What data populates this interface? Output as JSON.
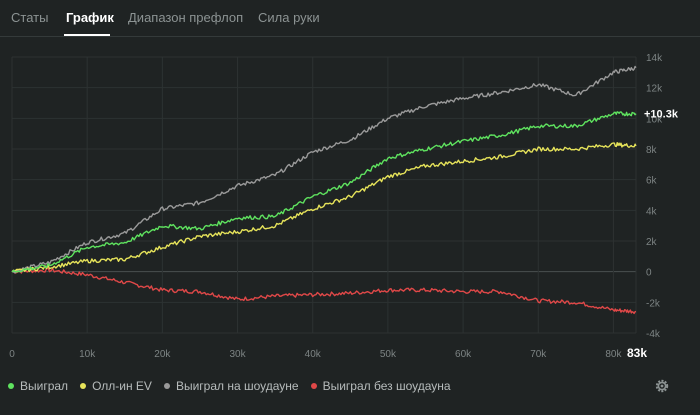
{
  "tabs": [
    {
      "label": "Статы",
      "active": false
    },
    {
      "label": "График",
      "active": true
    },
    {
      "label": "Диапазон префлоп",
      "active": false
    },
    {
      "label": "Сила руки",
      "active": false
    }
  ],
  "colors": {
    "background": "#1f2323",
    "won": "#5fe35f",
    "allin_ev": "#e6e35a",
    "showdown": "#9a9a9a",
    "non_showdown": "#e04848"
  },
  "end_value_label": "+10.3k",
  "end_x_label": "83k",
  "legend": [
    {
      "label": "Выиграл",
      "color": "#5fe35f"
    },
    {
      "label": "Олл-ин EV",
      "color": "#e6e35a"
    },
    {
      "label": "Выиграл на шоудауне",
      "color": "#9a9a9a"
    },
    {
      "label": "Выиграл без шоудауна",
      "color": "#e04848"
    }
  ],
  "settings_icon": "gear-icon",
  "chart_data": {
    "type": "line",
    "x": [
      0,
      5000,
      10000,
      15000,
      20000,
      25000,
      30000,
      35000,
      40000,
      45000,
      50000,
      55000,
      60000,
      65000,
      70000,
      75000,
      80000,
      83000
    ],
    "xlim": [
      0,
      83000
    ],
    "ylim": [
      -4000,
      14000
    ],
    "x_ticks": [
      "0",
      "10k",
      "20k",
      "30k",
      "40k",
      "50k",
      "60k",
      "70k",
      "80k"
    ],
    "y_ticks": [
      "14k",
      "12k",
      "10k",
      "8k",
      "6k",
      "4k",
      "2k",
      "0",
      "-2k",
      "-4k"
    ],
    "grid": true,
    "series": [
      {
        "name": "Выиграл",
        "color": "#5fe35f",
        "values": [
          0,
          400,
          1600,
          1900,
          3000,
          2800,
          3500,
          3600,
          4900,
          5800,
          7400,
          8000,
          8500,
          8900,
          9500,
          9500,
          10300,
          10300
        ]
      },
      {
        "name": "Олл-ин EV",
        "color": "#e6e35a",
        "values": [
          0,
          300,
          700,
          800,
          1600,
          2300,
          2600,
          3000,
          4100,
          4900,
          6200,
          6900,
          7200,
          7500,
          8000,
          8000,
          8300,
          8200
        ]
      },
      {
        "name": "Выиграл на шоудауне",
        "color": "#9a9a9a",
        "values": [
          0,
          600,
          1900,
          2500,
          4100,
          4500,
          5600,
          6300,
          7800,
          8600,
          10000,
          10800,
          11300,
          11700,
          12200,
          11500,
          13000,
          13300
        ]
      },
      {
        "name": "Выиграл без шоудауна",
        "color": "#e04848",
        "values": [
          0,
          100,
          -200,
          -700,
          -1200,
          -1300,
          -1800,
          -1600,
          -1500,
          -1400,
          -1200,
          -1200,
          -1300,
          -1300,
          -1900,
          -2000,
          -2500,
          -2600
        ]
      }
    ]
  }
}
